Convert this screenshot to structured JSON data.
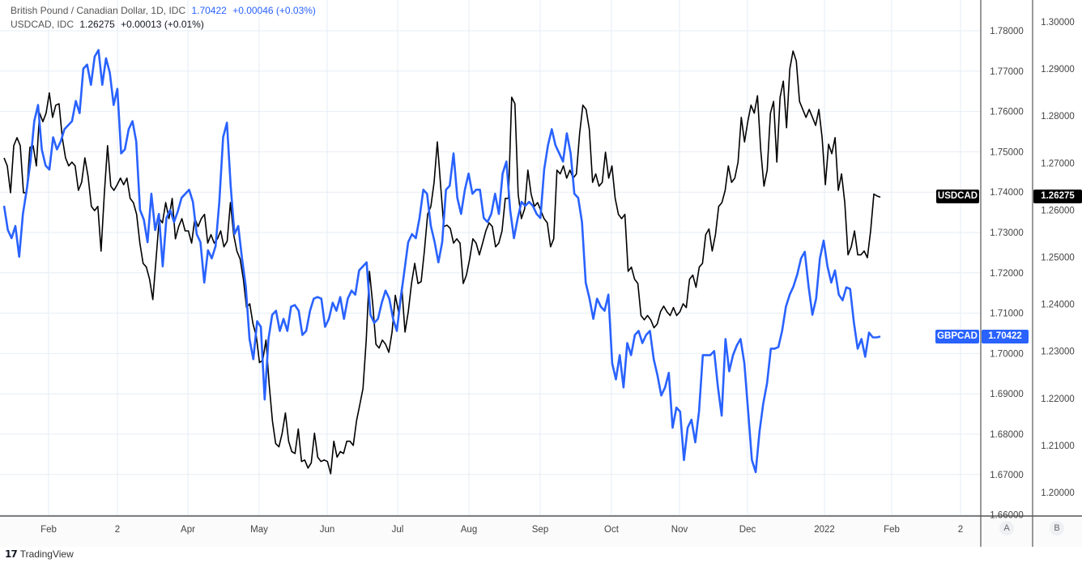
{
  "legend": {
    "gbp_title": "British Pound / Canadian Dollar, 1D, IDC",
    "gbp_price": "1.70422",
    "gbp_change": "+0.00046 (+0.03%)",
    "usd_title": "USDCAD, IDC",
    "usd_price": "1.26275",
    "usd_change": "+0.00013 (+0.01%)"
  },
  "tags": {
    "usd_symbol": "USDCAD",
    "usd_value": "1.26275",
    "gbp_symbol": "GBPCAD",
    "gbp_value": "1.70422"
  },
  "axis_buttons": {
    "a": "A",
    "b": "B"
  },
  "brand": "TradingView",
  "colors": {
    "gbpcad": "#2962ff",
    "usdcad": "#000000",
    "grid": "#e6eef6"
  },
  "chart_data": {
    "type": "line",
    "x_tick_labels": [
      "Feb",
      "2",
      "Apr",
      "May",
      "Jun",
      "Jul",
      "Aug",
      "Sep",
      "Oct",
      "Nov",
      "Dec",
      "2022",
      "Feb",
      "2"
    ],
    "left_axis": {
      "series": "GBPCAD",
      "range": [
        1.66,
        1.78
      ],
      "ticks": [
        "1.78000",
        "1.77000",
        "1.76000",
        "1.75000",
        "1.74000",
        "1.73000",
        "1.72000",
        "1.71000",
        "1.70000",
        "1.69000",
        "1.68000",
        "1.67000",
        "1.66000"
      ]
    },
    "right_axis": {
      "series": "USDCAD",
      "range": [
        1.2,
        1.3
      ],
      "ticks": [
        "1.30000",
        "1.29000",
        "1.28000",
        "1.27000",
        "1.26000",
        "1.25000",
        "1.24000",
        "1.23000",
        "1.22000",
        "1.21000",
        "1.20000"
      ]
    },
    "grid": true,
    "series": [
      {
        "name": "GBPCAD",
        "axis": "left",
        "values": [
          1.7366,
          1.7306,
          1.7286,
          1.7316,
          1.724,
          1.7346,
          1.7406,
          1.7476,
          1.7576,
          1.7616,
          1.7506,
          1.7466,
          1.7456,
          1.7536,
          1.7506,
          1.7526,
          1.7556,
          1.7566,
          1.7576,
          1.7626,
          1.7596,
          1.7706,
          1.7716,
          1.7666,
          1.7736,
          1.7752,
          1.7666,
          1.7732,
          1.7696,
          1.7616,
          1.7656,
          1.7496,
          1.7506,
          1.7556,
          1.7576,
          1.7526,
          1.7356,
          1.7332,
          1.7276,
          1.7396,
          1.7306,
          1.7346,
          1.7216,
          1.7336,
          1.7356,
          1.7326,
          1.7352,
          1.7386,
          1.7396,
          1.7406,
          1.7376,
          1.7296,
          1.7276,
          1.7176,
          1.7256,
          1.7236,
          1.7266,
          1.7376,
          1.7536,
          1.7572,
          1.7416,
          1.7296,
          1.7316,
          1.7236,
          1.7166,
          1.7036,
          1.6986,
          1.708,
          1.7066,
          1.6886,
          1.7036,
          1.7096,
          1.7106,
          1.7056,
          1.7086,
          1.7056,
          1.7116,
          1.712,
          1.7106,
          1.7046,
          1.7056,
          1.7106,
          1.7136,
          1.714,
          1.7136,
          1.7066,
          1.7086,
          1.7126,
          1.7106,
          1.714,
          1.7086,
          1.7136,
          1.7156,
          1.7146,
          1.7206,
          1.7216,
          1.7226,
          1.7096,
          1.7076,
          1.7086,
          1.7126,
          1.7156,
          1.7136,
          1.7086,
          1.7056,
          1.7136,
          1.7206,
          1.7276,
          1.7296,
          1.7286,
          1.7336,
          1.7406,
          1.7396,
          1.7316,
          1.7276,
          1.7226,
          1.7276,
          1.7406,
          1.7416,
          1.7496,
          1.7386,
          1.7346,
          1.7406,
          1.7446,
          1.7396,
          1.7406,
          1.7406,
          1.7336,
          1.7326,
          1.7346,
          1.7396,
          1.7346,
          1.7446,
          1.7476,
          1.7356,
          1.7286,
          1.7336,
          1.7376,
          1.7366,
          1.7376,
          1.7366,
          1.7346,
          1.7336,
          1.7456,
          1.7516,
          1.7556,
          1.7516,
          1.7496,
          1.7476,
          1.7546,
          1.7496,
          1.7396,
          1.7386,
          1.7326,
          1.7176,
          1.7136,
          1.7086,
          1.7136,
          1.7116,
          1.7106,
          1.7146,
          1.6976,
          1.6936,
          1.6996,
          1.6916,
          1.7026,
          1.6996,
          1.7046,
          1.7056,
          1.7026,
          1.7046,
          1.7056,
          1.6986,
          1.6946,
          1.6896,
          1.6916,
          1.6952,
          1.6816,
          1.6866,
          1.6856,
          1.6736,
          1.6816,
          1.6836,
          1.678,
          1.6856,
          1.6996,
          1.6996,
          1.6996,
          1.7006,
          1.6916,
          1.6846,
          1.7036,
          1.6956,
          1.6996,
          1.702,
          1.7036,
          1.6976,
          1.6856,
          1.6736,
          1.6706,
          1.6806,
          1.6876,
          1.6926,
          1.7012,
          1.7012,
          1.7016,
          1.7056,
          1.7116,
          1.7146,
          1.7166,
          1.7196,
          1.7236,
          1.7252,
          1.7166,
          1.7096,
          1.7136,
          1.7236,
          1.728,
          1.7216,
          1.7176,
          1.7206,
          1.7146,
          1.7132,
          1.7164,
          1.716,
          1.7076,
          1.7012,
          1.7036,
          1.6992,
          1.7052,
          1.704,
          1.704,
          1.7042
        ]
      },
      {
        "name": "USDCAD",
        "axis": "right",
        "values": [
          1.2711,
          1.2694,
          1.2637,
          1.2737,
          1.2754,
          1.2737,
          1.2637,
          1.2637,
          1.2733,
          1.2737,
          1.2694,
          1.2806,
          1.2788,
          1.2806,
          1.2849,
          1.2797,
          1.2823,
          1.2826,
          1.2754,
          1.2711,
          1.2694,
          1.2702,
          1.2694,
          1.2642,
          1.2659,
          1.2711,
          1.2671,
          1.2608,
          1.2599,
          1.2608,
          1.2513,
          1.2634,
          1.2737,
          1.2651,
          1.2642,
          1.2654,
          1.2668,
          1.2654,
          1.2668,
          1.2625,
          1.2616,
          1.2591,
          1.253,
          1.2487,
          1.2479,
          1.2453,
          1.241,
          1.2496,
          1.2582,
          1.2573,
          1.2616,
          1.2582,
          1.2625,
          1.2539,
          1.2565,
          1.2582,
          1.2556,
          1.2556,
          1.253,
          1.2582,
          1.2565,
          1.2582,
          1.2591,
          1.253,
          1.2548,
          1.253,
          1.2539,
          1.2556,
          1.2522,
          1.2534,
          1.2616,
          1.2548,
          1.2513,
          1.2496,
          1.2453,
          1.2393,
          1.2401,
          1.2358,
          1.2333,
          1.2276,
          1.2281,
          1.2324,
          1.2229,
          1.2152,
          1.2104,
          1.2097,
          1.2126,
          1.2169,
          1.2109,
          1.2087,
          1.2083,
          1.2135,
          1.2066,
          1.2069,
          1.2052,
          1.2063,
          1.2126,
          1.2075,
          1.2066,
          1.2069,
          1.2066,
          1.204,
          1.2109,
          1.2075,
          1.2087,
          1.2083,
          1.2109,
          1.2109,
          1.21,
          1.2152,
          1.2186,
          1.2221,
          1.2324,
          1.247,
          1.2401,
          1.2315,
          1.2307,
          1.2324,
          1.2315,
          1.2298,
          1.2341,
          1.2419,
          1.2384,
          1.2436,
          1.2341,
          1.2384,
          1.2444,
          1.2487,
          1.2444,
          1.2448,
          1.2513,
          1.2591,
          1.2608,
          1.2659,
          1.2745,
          1.2654,
          1.2565,
          1.2568,
          1.2561,
          1.253,
          1.2539,
          1.253,
          1.2444,
          1.2462,
          1.2496,
          1.2539,
          1.253,
          1.2505,
          1.253,
          1.2556,
          1.2573,
          1.2565,
          1.2522,
          1.253,
          1.2556,
          1.2625,
          1.2625,
          1.284,
          1.2826,
          1.2634,
          1.2582,
          1.2603,
          1.2685,
          1.2634,
          1.2608,
          1.2616,
          1.2599,
          1.2582,
          1.2573,
          1.2522,
          1.2539,
          1.2685,
          1.2677,
          1.2694,
          1.2668,
          1.2685,
          1.2668,
          1.2677,
          1.2763,
          1.2823,
          1.2814,
          1.2771,
          1.2659,
          1.2677,
          1.2651,
          1.2659,
          1.2723,
          1.2668,
          1.2694,
          1.2625,
          1.2591,
          1.2582,
          1.2591,
          1.247,
          1.2479,
          1.2453,
          1.2444,
          1.2376,
          1.2367,
          1.2376,
          1.2367,
          1.235,
          1.2358,
          1.2384,
          1.2396,
          1.2384,
          1.2376,
          1.2393,
          1.2376,
          1.2384,
          1.2401,
          1.2393,
          1.2453,
          1.2462,
          1.2436,
          1.2479,
          1.2487,
          1.2548,
          1.256,
          1.2513,
          1.2548,
          1.2608,
          1.2616,
          1.2642,
          1.2694,
          1.2659,
          1.2668,
          1.2702,
          1.2797,
          1.2745,
          1.2788,
          1.2823,
          1.2806,
          1.2843,
          1.2728,
          1.2651,
          1.2685,
          1.2806,
          1.2831,
          1.2702,
          1.284,
          1.2874,
          1.2775,
          1.29,
          1.2938,
          1.2917,
          1.2831,
          1.2814,
          1.2797,
          1.2814,
          1.2797,
          1.278,
          1.2814,
          1.2754,
          1.2654,
          1.274,
          1.272,
          1.2754,
          1.2642,
          1.2677,
          1.2616,
          1.2505,
          1.2522,
          1.2556,
          1.2505,
          1.2505,
          1.2513,
          1.2499,
          1.2556,
          1.2634,
          1.263,
          1.26275
        ]
      }
    ]
  }
}
